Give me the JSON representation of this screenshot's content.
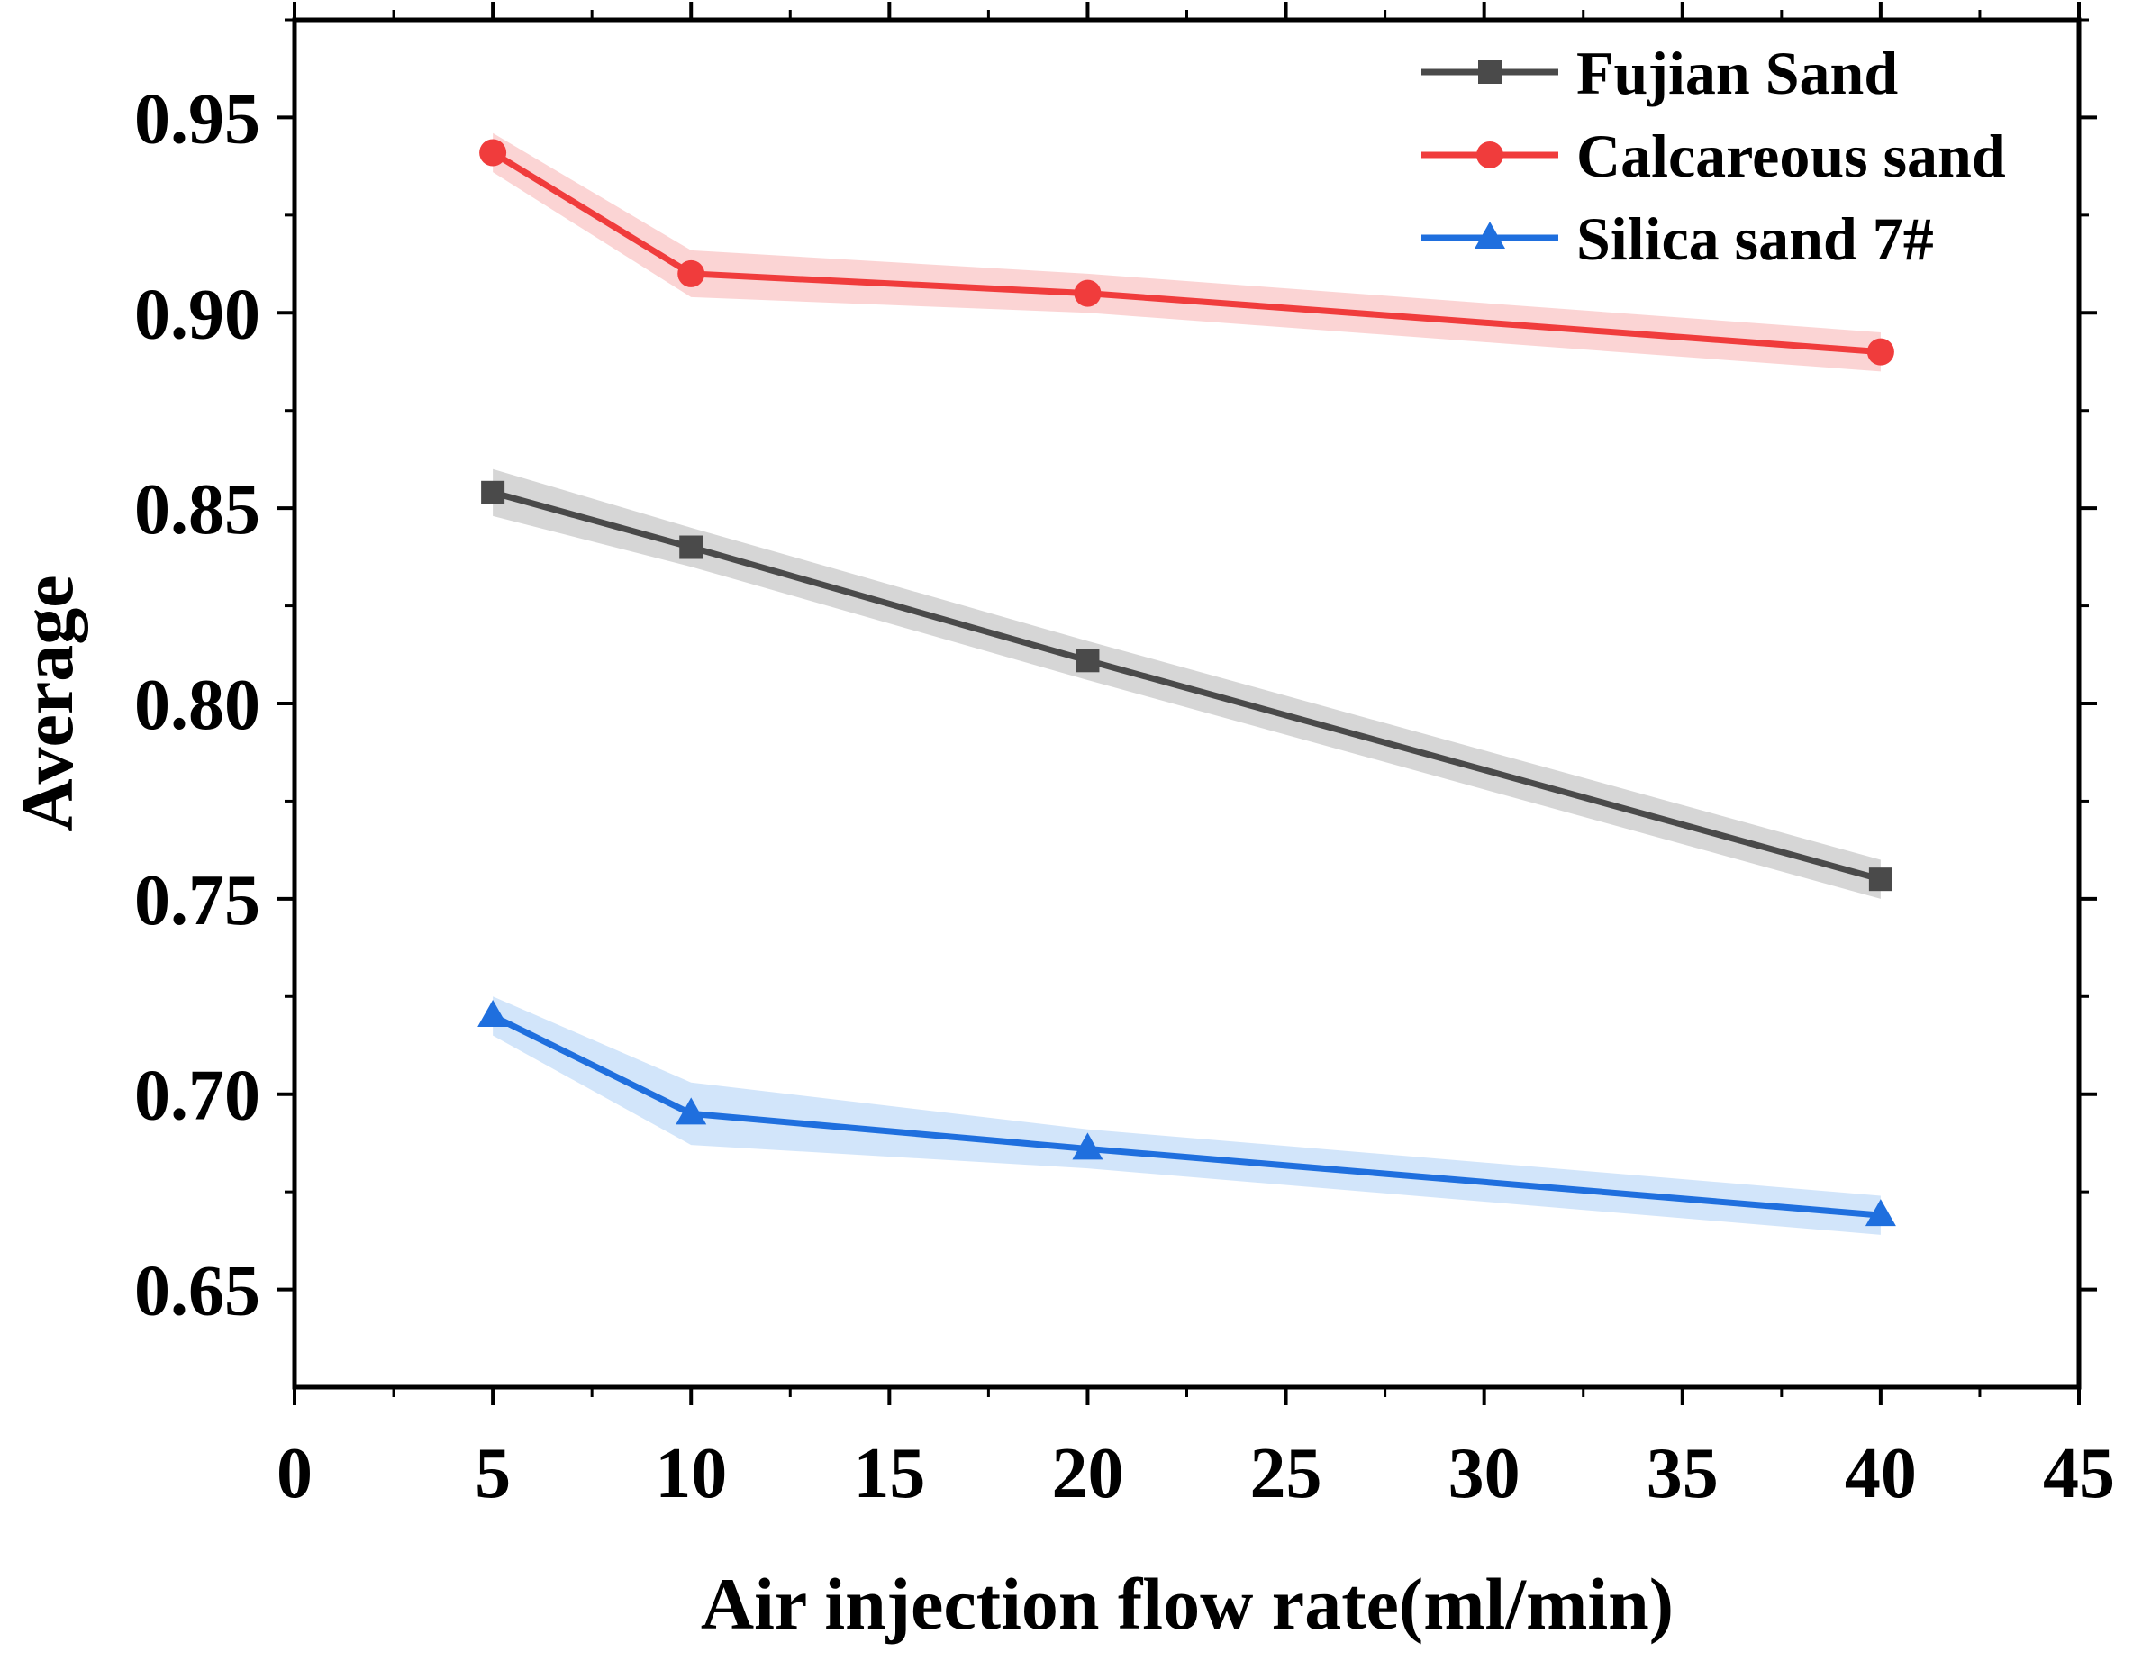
{
  "chart_data": {
    "type": "line",
    "title": "",
    "xlabel": "Air injection flow rate(ml/min)",
    "ylabel": "Average",
    "xlim": [
      0,
      45
    ],
    "ylim": [
      0.625,
      0.975
    ],
    "xticks": [
      "0",
      "5",
      "10",
      "15",
      "20",
      "25",
      "30",
      "35",
      "40",
      "45"
    ],
    "yticks": [
      "0.65",
      "0.70",
      "0.75",
      "0.80",
      "0.85",
      "0.90",
      "0.95"
    ],
    "x": [
      5,
      10,
      20,
      40
    ],
    "legend_position": "top-right",
    "series": [
      {
        "name": "Fujian Sand",
        "color": "#4a4a4a",
        "band_color": "#c8c8c8",
        "marker": "square",
        "values": [
          0.854,
          0.84,
          0.811,
          0.755
        ],
        "band": [
          0.006,
          0.005,
          0.005,
          0.005
        ]
      },
      {
        "name": "Calcareous sand",
        "color": "#f03c3c",
        "band_color": "#f9c6c6",
        "marker": "circle",
        "values": [
          0.941,
          0.91,
          0.905,
          0.89
        ],
        "band": [
          0.005,
          0.006,
          0.005,
          0.005
        ]
      },
      {
        "name": "Silica sand 7#",
        "color": "#1f6fde",
        "band_color": "#c3dcf8",
        "marker": "triangle",
        "values": [
          0.72,
          0.695,
          0.686,
          0.669
        ],
        "band": [
          0.005,
          0.008,
          0.005,
          0.005
        ]
      }
    ]
  }
}
